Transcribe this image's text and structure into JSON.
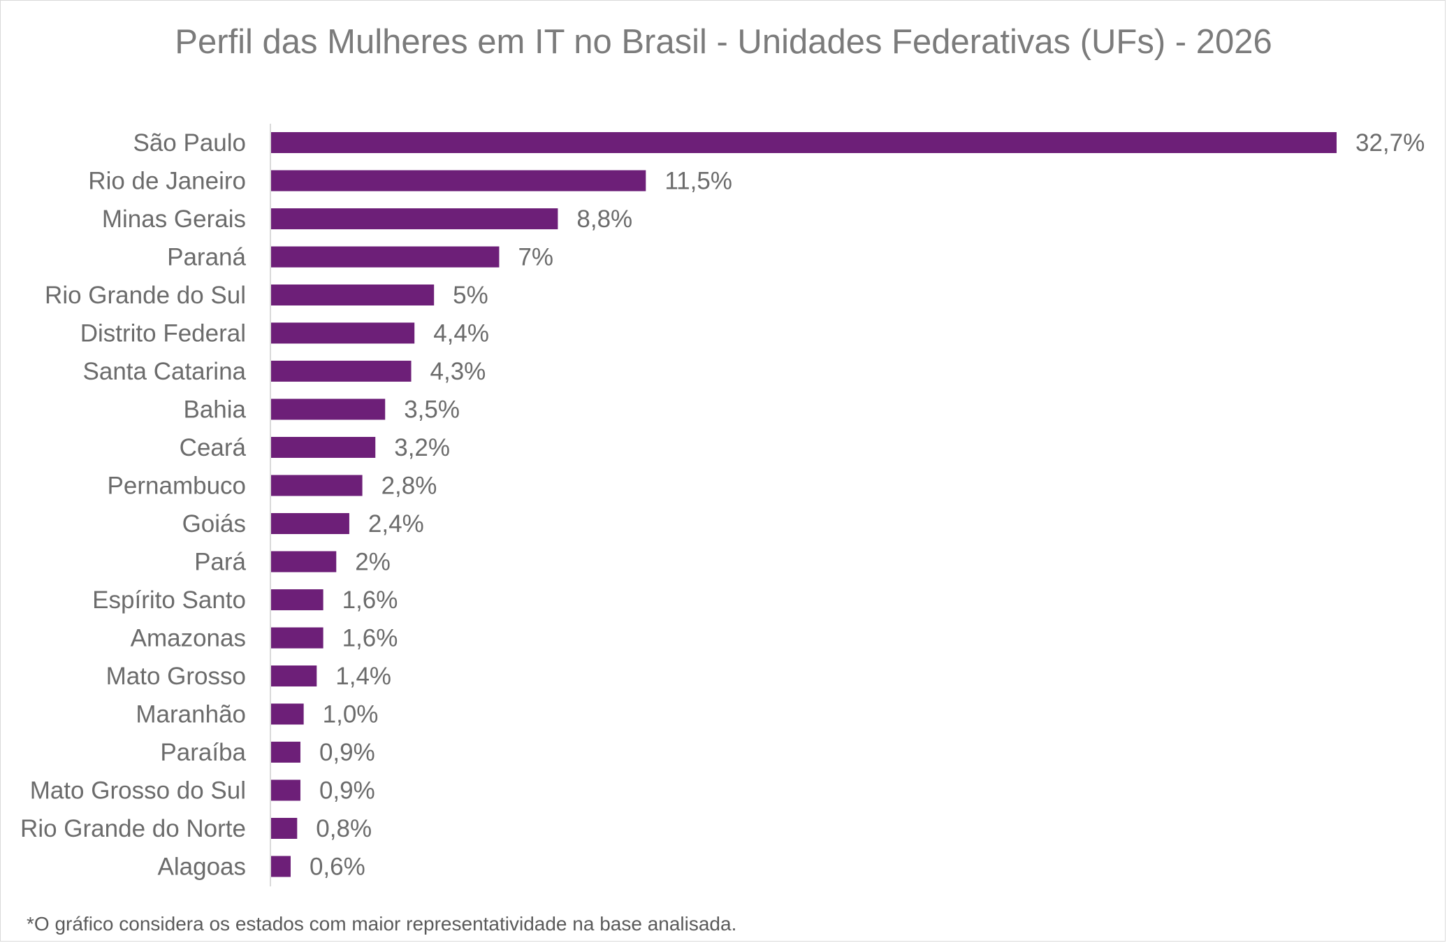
{
  "chart_data": {
    "type": "bar",
    "orientation": "horizontal",
    "title": "Perfil das Mulheres em IT no Brasil - Unidades Federativas (UFs) - 2026",
    "xlabel": "",
    "ylabel": "",
    "categories": [
      "São Paulo",
      "Rio de Janeiro",
      "Minas Gerais",
      "Paraná",
      "Rio Grande do Sul",
      "Distrito Federal",
      "Santa Catarina",
      "Bahia",
      "Ceará",
      "Pernambuco",
      "Goiás",
      "Pará",
      "Espírito Santo",
      "Amazonas",
      "Mato Grosso",
      "Maranhão",
      "Paraíba",
      "Mato Grosso do Sul",
      "Rio Grande do Norte",
      "Alagoas"
    ],
    "values": [
      32.7,
      11.5,
      8.8,
      7,
      5,
      4.4,
      4.3,
      3.5,
      3.2,
      2.8,
      2.4,
      2,
      1.6,
      1.6,
      1.4,
      1.0,
      0.9,
      0.9,
      0.8,
      0.6
    ],
    "value_labels": [
      "32,7%",
      "11,5%",
      "8,8%",
      "7%",
      "5%",
      "4,4%",
      "4,3%",
      "3,5%",
      "3,2%",
      "2,8%",
      "2,4%",
      "2%",
      "1,6%",
      "1,6%",
      "1,4%",
      "1,0%",
      "0,9%",
      "0,9%",
      "0,8%",
      "0,6%"
    ],
    "xlim": [
      0,
      32.7
    ],
    "grid": false,
    "legend": "none",
    "bar_color": "#6d1f78"
  },
  "footnote": "*O gráfico considera os estados com maior representatividade na base analisada."
}
